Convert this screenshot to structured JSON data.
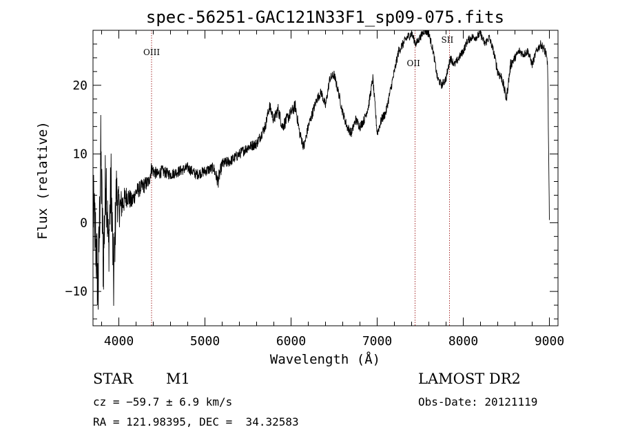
{
  "chart_data": {
    "type": "line",
    "title": "spec-56251-GAC121N33F1_sp09-075.fits",
    "xlabel": "Wavelength (Å)",
    "ylabel": "Flux (relative)",
    "xlim": [
      3700,
      9100
    ],
    "ylim": [
      -15,
      28
    ],
    "xticks": [
      4000,
      5000,
      6000,
      7000,
      8000,
      9000
    ],
    "yticks": [
      -10,
      0,
      10,
      20
    ],
    "xtick_labels": [
      "4000",
      "5000",
      "6000",
      "7000",
      "8000",
      "9000"
    ],
    "ytick_labels": [
      "−10",
      "0",
      "10",
      "20"
    ],
    "grid": false,
    "line_color": "#000000",
    "spectrum": {
      "x": [
        3700,
        3730,
        3760,
        3790,
        3820,
        3850,
        3880,
        3910,
        3940,
        3970,
        4000,
        4050,
        4100,
        4150,
        4200,
        4250,
        4300,
        4350,
        4380,
        4400,
        4450,
        4500,
        4600,
        4700,
        4800,
        4900,
        5000,
        5100,
        5150,
        5200,
        5300,
        5400,
        5500,
        5600,
        5700,
        5750,
        5800,
        5850,
        5900,
        5950,
        6000,
        6050,
        6100,
        6150,
        6200,
        6250,
        6300,
        6350,
        6400,
        6450,
        6500,
        6550,
        6600,
        6650,
        6700,
        6750,
        6800,
        6850,
        6900,
        6950,
        7000,
        7050,
        7100,
        7150,
        7200,
        7250,
        7300,
        7350,
        7400,
        7450,
        7500,
        7550,
        7600,
        7650,
        7700,
        7750,
        7800,
        7850,
        7900,
        7950,
        8000,
        8050,
        8100,
        8150,
        8200,
        8250,
        8300,
        8350,
        8400,
        8450,
        8500,
        8550,
        8600,
        8650,
        8700,
        8750,
        8800,
        8850,
        8900,
        8950,
        8980,
        9000
      ],
      "y": [
        2,
        -2,
        -10,
        10,
        -6,
        8,
        -4,
        6,
        -9,
        5,
        2,
        3,
        4,
        3,
        4.5,
        5,
        5.5,
        6,
        8,
        7.5,
        7,
        7.5,
        7,
        7.5,
        8,
        7,
        7.5,
        8,
        6,
        8.5,
        9,
        10,
        11,
        11.5,
        14,
        17,
        15,
        16.5,
        14,
        15,
        16,
        17,
        13,
        11,
        14,
        16,
        18,
        19,
        17,
        21,
        21.5,
        19,
        16,
        14,
        13,
        15,
        14,
        15,
        17,
        21,
        13,
        15,
        16,
        19,
        22,
        25,
        26,
        27,
        27.5,
        26,
        27,
        28,
        27.5,
        25,
        21,
        20,
        21,
        24,
        23,
        24,
        25,
        26.5,
        27,
        27,
        27.5,
        26,
        27,
        25,
        22,
        21,
        18,
        23,
        24,
        25,
        24.5,
        25,
        23,
        25,
        26,
        25,
        23,
        0
      ],
      "noise_scale": [
        6,
        6,
        6,
        6,
        6,
        6,
        5,
        5,
        5,
        4,
        3,
        2,
        1.6,
        1.4,
        1.2,
        1.2,
        1.2,
        1,
        1,
        1,
        0.9,
        0.9,
        0.8,
        0.8,
        0.8,
        0.8,
        0.8,
        0.8,
        1.2,
        0.9,
        0.8,
        0.8,
        0.8,
        0.8,
        0.8,
        0.8,
        0.9,
        0.9,
        1,
        0.9,
        0.9,
        0.9,
        0.8,
        0.8,
        0.8,
        0.8,
        0.7,
        0.7,
        0.7,
        0.7,
        0.7,
        0.7,
        0.7,
        0.7,
        0.7,
        0.7,
        0.7,
        0.7,
        0.7,
        0.7,
        0.7,
        0.7,
        0.7,
        0.7,
        0.7,
        0.7,
        0.7,
        0.7,
        0.6,
        0.6,
        0.6,
        0.6,
        0.6,
        0.6,
        0.6,
        0.6,
        0.6,
        0.6,
        0.6,
        0.6,
        0.6,
        0.6,
        0.6,
        0.6,
        0.6,
        0.6,
        0.6,
        0.6,
        0.8,
        0.8,
        0.8,
        0.8,
        0.6,
        0.6,
        0.6,
        0.6,
        0.6,
        0.6,
        0.6,
        0.8,
        1,
        1
      ]
    },
    "line_markers": [
      {
        "label": "OIII",
        "x": 4380,
        "color": "#a52a2a"
      },
      {
        "label": "OII",
        "x": 7440,
        "color": "#a52a2a"
      },
      {
        "label": "SII",
        "x": 7840,
        "color": "#a52a2a"
      }
    ]
  },
  "info": {
    "object_class": "STAR",
    "subclass": "M1",
    "survey": "LAMOST DR2",
    "cz_line": "cz = −59.7 ± 6.9 km/s",
    "obs_date_line": "Obs-Date: 20121119",
    "radec_line": "RA = 121.98395, DEC =  34.32583"
  }
}
